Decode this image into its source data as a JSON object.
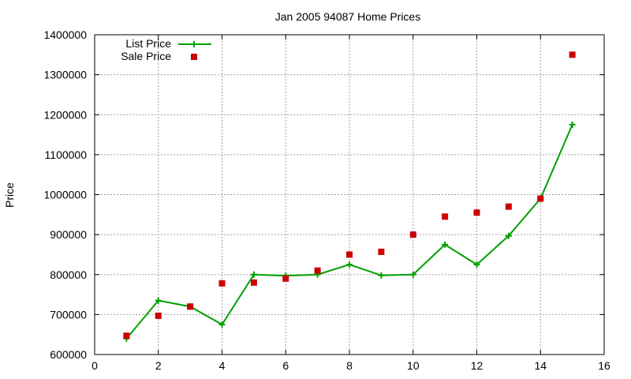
{
  "chart_data": {
    "type": "line",
    "title": "Jan 2005 94087 Home Prices",
    "ylabel": "Price",
    "xlabel": "",
    "xlim": [
      0,
      16
    ],
    "ylim": [
      600000,
      1400000
    ],
    "xticks": [
      0,
      2,
      4,
      6,
      8,
      10,
      12,
      14,
      16
    ],
    "yticks": [
      600000,
      700000,
      800000,
      900000,
      1000000,
      1100000,
      1200000,
      1300000,
      1400000
    ],
    "grid": true,
    "legend": "top-left",
    "series": [
      {
        "name": "List Price",
        "style": "line-with-plus-markers",
        "color": "#00a000",
        "x": [
          1,
          2,
          3,
          4,
          5,
          6,
          7,
          8,
          9,
          10,
          11,
          12,
          13,
          14,
          15
        ],
        "y": [
          640000,
          735000,
          720000,
          675000,
          800000,
          797000,
          800000,
          825000,
          798000,
          800000,
          875000,
          825000,
          897000,
          990000,
          1175000
        ]
      },
      {
        "name": "Sale Price",
        "style": "square-markers",
        "color": "#cc0000",
        "x": [
          1,
          2,
          3,
          4,
          5,
          6,
          7,
          8,
          9,
          10,
          11,
          12,
          13,
          14,
          15
        ],
        "y": [
          647000,
          697000,
          720000,
          778000,
          780000,
          790000,
          810000,
          850000,
          857000,
          900000,
          945000,
          955000,
          970000,
          990000,
          1350000
        ]
      }
    ]
  }
}
